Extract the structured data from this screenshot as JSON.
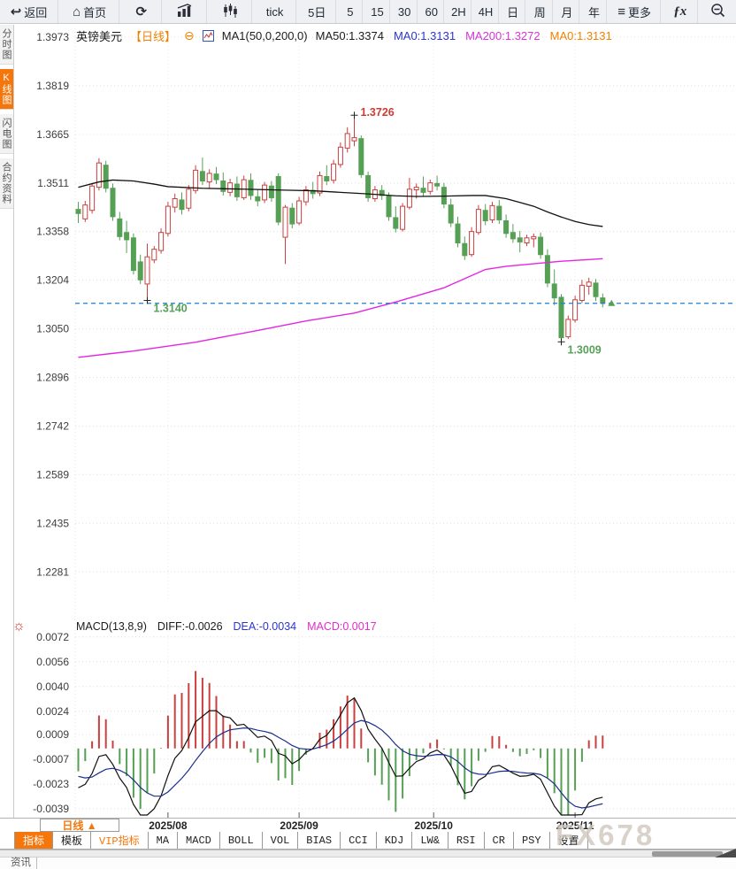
{
  "toolbar": {
    "items": [
      {
        "name": "back-button",
        "icon": "back-icon",
        "glyph": "↩",
        "label": "返回"
      },
      {
        "name": "home-button",
        "icon": "home-icon",
        "glyph": "⌂",
        "label": "首页"
      },
      {
        "name": "refresh-button",
        "icon": "refresh-icon",
        "glyph": "⟳",
        "label": ""
      },
      {
        "name": "bar-chart-button",
        "icon": "bar-chart-icon",
        "svg": "bars",
        "label": ""
      },
      {
        "name": "candlestick-button",
        "icon": "candlestick-icon",
        "svg": "candles",
        "label": ""
      },
      {
        "name": "timeframe-tick",
        "label": "tick"
      },
      {
        "name": "timeframe-5day",
        "label": "5日"
      },
      {
        "name": "timeframe-5",
        "label": "5"
      },
      {
        "name": "timeframe-15",
        "label": "15"
      },
      {
        "name": "timeframe-30",
        "label": "30"
      },
      {
        "name": "timeframe-60",
        "label": "60"
      },
      {
        "name": "timeframe-2h",
        "label": "2H"
      },
      {
        "name": "timeframe-4h",
        "label": "4H"
      },
      {
        "name": "timeframe-day",
        "label": "日"
      },
      {
        "name": "timeframe-week",
        "label": "周"
      },
      {
        "name": "timeframe-month",
        "label": "月"
      },
      {
        "name": "timeframe-year",
        "label": "年"
      },
      {
        "name": "more-button",
        "icon": "menu-icon",
        "glyph": "≡",
        "label": "更多"
      },
      {
        "name": "fx-button",
        "label": "ƒx"
      },
      {
        "name": "zoom-out-button",
        "icon": "zoom-out-icon",
        "svg": "zoomout",
        "label": ""
      }
    ]
  },
  "sidebar": {
    "items": [
      {
        "label": "分时图",
        "active": false
      },
      {
        "label": "K线图",
        "active": true
      },
      {
        "label": "闪电图",
        "active": false
      },
      {
        "label": "合约资料",
        "active": false
      }
    ]
  },
  "symbol_header": {
    "symbol": "英镑美元",
    "period_tag": "【日线】",
    "collapse_icon": "⊖",
    "ma_settings": "MA1(50,0,200,0)",
    "ma_values": [
      {
        "text": "MA50:1.3374",
        "color": "#1c1c1c"
      },
      {
        "text": "MA0:1.3131",
        "color": "#2b35cf"
      },
      {
        "text": "MA200:1.3272",
        "color": "#d733d7"
      },
      {
        "text": "MA0:1.3131",
        "color": "#ef8200"
      }
    ]
  },
  "macd_header": {
    "title": "MACD(13,8,9)",
    "settings_icon": "☼",
    "values": [
      {
        "text": "DIFF:-0.0026",
        "color": "#1c1c1c"
      },
      {
        "text": "DEA:-0.0034",
        "color": "#2b35cf"
      },
      {
        "text": "MACD:0.0017",
        "color": "#e62bc8"
      }
    ]
  },
  "chart_data": {
    "type": "candlestick",
    "symbol": "GBP/USD 英镑美元",
    "period": "日线",
    "indicator": "MACD",
    "macd_params": [
      13,
      8,
      9
    ],
    "y_ticks": [
      1.3973,
      1.3819,
      1.3665,
      1.3511,
      1.3358,
      1.3204,
      1.305,
      1.2896,
      1.2742,
      1.2589,
      1.2435,
      1.2281
    ],
    "macd_y_ticks": [
      0.0072,
      0.0056,
      0.004,
      0.0024,
      0.0009,
      -0.0007,
      -0.0023,
      -0.0039
    ],
    "x_ticks": [
      {
        "label": "2025/08",
        "index": 13
      },
      {
        "label": "2025/09",
        "index": 32
      },
      {
        "label": "2025/10",
        "index": 51.5
      },
      {
        "label": "2025/11",
        "index": 72
      }
    ],
    "current_price": 1.3131,
    "annotations": [
      {
        "label": "1.3726",
        "index": 40,
        "price": 1.3726,
        "type": "high",
        "color": "#cc3b34"
      },
      {
        "label": "1.3140",
        "index": 10,
        "price": 1.314,
        "type": "low",
        "color": "#58a058"
      },
      {
        "label": "1.3009",
        "index": 70,
        "price": 1.3009,
        "type": "low",
        "color": "#58a058"
      }
    ],
    "colors": {
      "up": "#c9403f",
      "down": "#55a055",
      "ma50": "#111111",
      "ma200": "#e326e3",
      "diff": "#111111",
      "dea": "#1b2e8c",
      "price_line": "#1f7ed0",
      "grid": "#dcdcdc"
    },
    "candles": [
      [
        1.3428,
        1.3452,
        1.3385,
        1.3415
      ],
      [
        1.3398,
        1.3455,
        1.3388,
        1.3442
      ],
      [
        1.3425,
        1.3512,
        1.3415,
        1.3502
      ],
      [
        1.3498,
        1.359,
        1.3488,
        1.3575
      ],
      [
        1.3568,
        1.3582,
        1.3482,
        1.3495
      ],
      [
        1.3495,
        1.351,
        1.3392,
        1.3405
      ],
      [
        1.3398,
        1.342,
        1.333,
        1.3342
      ],
      [
        1.3355,
        1.3392,
        1.329,
        1.3332
      ],
      [
        1.3338,
        1.3352,
        1.3222,
        1.3235
      ],
      [
        1.3262,
        1.3285,
        1.3192,
        1.3205
      ],
      [
        1.3192,
        1.332,
        1.314,
        1.3278
      ],
      [
        1.3268,
        1.3312,
        1.3258,
        1.3302
      ],
      [
        1.3298,
        1.3368,
        1.3288,
        1.3355
      ],
      [
        1.3352,
        1.3452,
        1.3342,
        1.3438
      ],
      [
        1.3435,
        1.3478,
        1.3418,
        1.3462
      ],
      [
        1.3458,
        1.3482,
        1.3412,
        1.3428
      ],
      [
        1.3432,
        1.3505,
        1.3422,
        1.3492
      ],
      [
        1.3488,
        1.3568,
        1.3478,
        1.3552
      ],
      [
        1.3548,
        1.3592,
        1.3505,
        1.3518
      ],
      [
        1.3515,
        1.3555,
        1.3495,
        1.3542
      ],
      [
        1.354,
        1.3562,
        1.3508,
        1.3522
      ],
      [
        1.3518,
        1.3545,
        1.3472,
        1.3485
      ],
      [
        1.3482,
        1.3525,
        1.347,
        1.3512
      ],
      [
        1.3508,
        1.3532,
        1.3455,
        1.3468
      ],
      [
        1.3465,
        1.3535,
        1.3458,
        1.3522
      ],
      [
        1.352,
        1.3542,
        1.3458,
        1.3472
      ],
      [
        1.3468,
        1.3492,
        1.3438,
        1.3455
      ],
      [
        1.3458,
        1.3515,
        1.3448,
        1.3505
      ],
      [
        1.3502,
        1.3518,
        1.3452,
        1.3465
      ],
      [
        1.3532,
        1.3542,
        1.3378,
        1.3388
      ],
      [
        1.334,
        1.3442,
        1.3255,
        1.3435
      ],
      [
        1.3432,
        1.3448,
        1.3368,
        1.3382
      ],
      [
        1.3385,
        1.3468,
        1.3378,
        1.3455
      ],
      [
        1.3452,
        1.3502,
        1.344,
        1.349
      ],
      [
        1.3488,
        1.3515,
        1.3462,
        1.3478
      ],
      [
        1.348,
        1.3548,
        1.347,
        1.3535
      ],
      [
        1.3532,
        1.3568,
        1.3505,
        1.3518
      ],
      [
        1.352,
        1.3585,
        1.351,
        1.3572
      ],
      [
        1.357,
        1.364,
        1.356,
        1.3625
      ],
      [
        1.3622,
        1.3688,
        1.3608,
        1.3668
      ],
      [
        1.3645,
        1.3726,
        1.3628,
        1.3655
      ],
      [
        1.3652,
        1.3662,
        1.3528,
        1.3538
      ],
      [
        1.3535,
        1.3548,
        1.3452,
        1.3465
      ],
      [
        1.3462,
        1.3502,
        1.3452,
        1.349
      ],
      [
        1.3488,
        1.3505,
        1.3458,
        1.3472
      ],
      [
        1.347,
        1.3482,
        1.3392,
        1.3405
      ],
      [
        1.3402,
        1.3438,
        1.3355,
        1.3368
      ],
      [
        1.3365,
        1.3448,
        1.3358,
        1.3438
      ],
      [
        1.3435,
        1.3528,
        1.3428,
        1.3492
      ],
      [
        1.349,
        1.351,
        1.3462,
        1.3498
      ],
      [
        1.3495,
        1.3532,
        1.347,
        1.3482
      ],
      [
        1.3485,
        1.3522,
        1.3475,
        1.3512
      ],
      [
        1.351,
        1.3535,
        1.3488,
        1.3502
      ],
      [
        1.3498,
        1.3512,
        1.3432,
        1.3445
      ],
      [
        1.3442,
        1.3462,
        1.3372,
        1.3385
      ],
      [
        1.3382,
        1.3405,
        1.3308,
        1.3322
      ],
      [
        1.332,
        1.3342,
        1.3268,
        1.3282
      ],
      [
        1.3285,
        1.3372,
        1.3278,
        1.3358
      ],
      [
        1.3355,
        1.3442,
        1.3348,
        1.3428
      ],
      [
        1.3425,
        1.3445,
        1.3378,
        1.3392
      ],
      [
        1.3395,
        1.3452,
        1.3385,
        1.344
      ],
      [
        1.3438,
        1.3458,
        1.3382,
        1.3395
      ],
      [
        1.3392,
        1.3412,
        1.3338,
        1.3352
      ],
      [
        1.3355,
        1.3382,
        1.3322,
        1.3335
      ],
      [
        1.3338,
        1.336,
        1.3292,
        1.3325
      ],
      [
        1.3322,
        1.3348,
        1.3312,
        1.3338
      ],
      [
        1.3335,
        1.3352,
        1.3308,
        1.3342
      ],
      [
        1.334,
        1.3355,
        1.3272,
        1.3285
      ],
      [
        1.3282,
        1.3302,
        1.3182,
        1.3195
      ],
      [
        1.3192,
        1.3238,
        1.3125,
        1.3148
      ],
      [
        1.315,
        1.316,
        1.3009,
        1.3022
      ],
      [
        1.3025,
        1.3092,
        1.3018,
        1.308
      ],
      [
        1.3078,
        1.3155,
        1.307,
        1.3142
      ],
      [
        1.314,
        1.3205,
        1.3132,
        1.3188
      ],
      [
        1.3185,
        1.3212,
        1.3158,
        1.3198
      ],
      [
        1.3195,
        1.3208,
        1.3138,
        1.3152
      ],
      [
        1.3148,
        1.3162,
        1.3118,
        1.3131
      ]
    ],
    "warmup_closes": [
      1.3585,
      1.357,
      1.3552,
      1.353,
      1.3512,
      1.3498,
      1.348,
      1.3462,
      1.345,
      1.3438,
      1.3425
    ],
    "ma50_points": [
      [
        0,
        1.3498
      ],
      [
        3,
        1.3515
      ],
      [
        5,
        1.3521
      ],
      [
        8,
        1.3518
      ],
      [
        11,
        1.3508
      ],
      [
        13,
        1.35
      ],
      [
        18,
        1.3495
      ],
      [
        24,
        1.3492
      ],
      [
        30,
        1.3489
      ],
      [
        34,
        1.3487
      ],
      [
        38,
        1.3482
      ],
      [
        42,
        1.3477
      ],
      [
        46,
        1.3471
      ],
      [
        49,
        1.3469
      ],
      [
        53,
        1.347
      ],
      [
        57,
        1.3472
      ],
      [
        59,
        1.3472
      ],
      [
        62,
        1.3462
      ],
      [
        64,
        1.345
      ],
      [
        66,
        1.3438
      ],
      [
        68,
        1.342
      ],
      [
        70,
        1.3404
      ],
      [
        72,
        1.339
      ],
      [
        74,
        1.338
      ],
      [
        76,
        1.3374
      ]
    ],
    "ma200_points": [
      [
        0,
        1.296
      ],
      [
        8,
        1.298
      ],
      [
        17,
        1.3008
      ],
      [
        26,
        1.3045
      ],
      [
        33,
        1.3075
      ],
      [
        40,
        1.31
      ],
      [
        46,
        1.3135
      ],
      [
        53,
        1.318
      ],
      [
        59,
        1.3238
      ],
      [
        62,
        1.3248
      ],
      [
        66,
        1.3256
      ],
      [
        70,
        1.3264
      ],
      [
        73,
        1.3268
      ],
      [
        76,
        1.3272
      ]
    ]
  },
  "bottom": {
    "period_button": "日线 ▲",
    "tabs": [
      {
        "label": "指标",
        "active": true
      },
      {
        "label": "模板"
      },
      {
        "label": "VIP指标",
        "vip": true
      },
      {
        "label": "MA"
      },
      {
        "label": "MACD"
      },
      {
        "label": "BOLL"
      },
      {
        "label": "VOL"
      },
      {
        "label": "BIAS"
      },
      {
        "label": "CCI"
      },
      {
        "label": "KDJ"
      },
      {
        "label": "LW&"
      },
      {
        "label": "RSI"
      },
      {
        "label": "CR"
      },
      {
        "label": "PSY"
      },
      {
        "label": "设置"
      }
    ],
    "news_tab": "资讯",
    "watermark": "FX678"
  }
}
